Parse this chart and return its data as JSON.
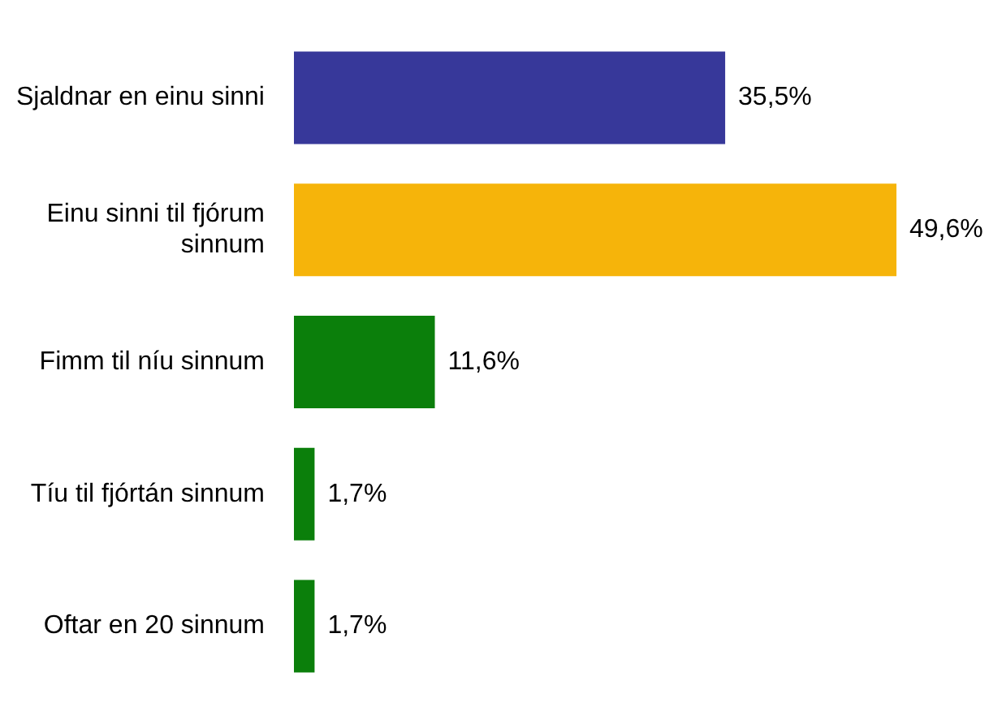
{
  "chart_data": {
    "type": "bar",
    "orientation": "horizontal",
    "categories": [
      "Sjaldnar en einu sinni",
      "Einu sinni til fjórum sinnum",
      "Fimm til níu sinnum",
      "Tíu til fjórtán sinnum",
      "Oftar en 20 sinnum"
    ],
    "values": [
      35.5,
      49.6,
      11.6,
      1.7,
      1.7
    ],
    "colors": [
      "#37389a",
      "#f6b40a",
      "#0b7f0b",
      "#0b7f0b",
      "#0b7f0b"
    ],
    "value_labels": [
      "35,5%",
      "49,6%",
      "11,6%",
      "1,7%",
      "1,7%"
    ],
    "grid": false,
    "legend": false
  }
}
